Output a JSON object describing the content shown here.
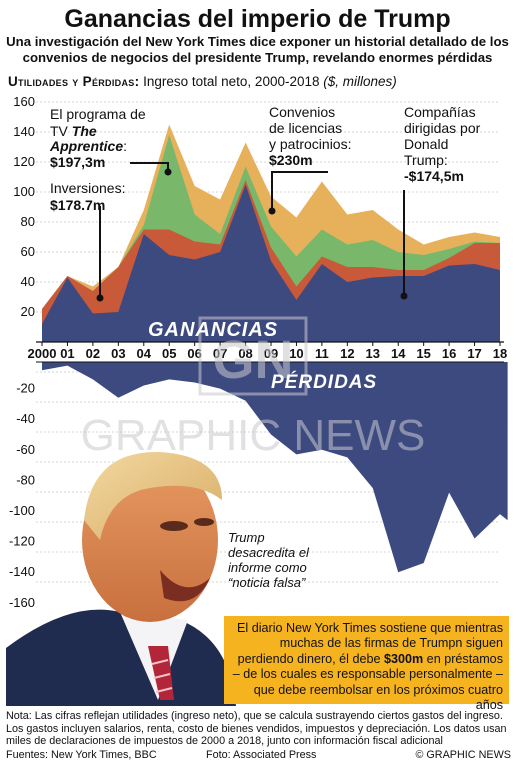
{
  "header": {
    "title": "Ganancias del imperio de Trump",
    "subtitle": "Una investigación del New York Times dice exponer un historial detallado de los convenios de negocios del presidente Trump, revelando enormes pérdidas"
  },
  "section": {
    "label": "Utilidades y Pérdidas:",
    "desc": " Ingreso total neto, 2000-2018 ",
    "unit": "($, millones)"
  },
  "colors": {
    "base": "#3d4a80",
    "layer2": "#c85a3a",
    "layer3": "#79b86a",
    "layer4": "#e7b15c",
    "callout": "#f6b320"
  },
  "labels": {
    "gains": "GANANCIAS",
    "losses": "PÉRDIDAS",
    "watermark": "GRAPHIC NEWS",
    "apprentice": [
      "El programa de",
      "TV ",
      "The",
      "Apprentice",
      ":",
      "$197,3m"
    ],
    "investments": [
      "Inversiones:",
      "$178.7m"
    ],
    "licensing": [
      "Convenios",
      "de licencias",
      "y patrocinios:",
      "$230m"
    ],
    "companies": [
      "Compañías",
      "dirigidas por",
      "Donald",
      "Trump:",
      "-$174,5m"
    ]
  },
  "quote": "Trump desacredita el informe como “noticia falsa”",
  "callout": {
    "before": "El diario New York Times sostiene que mientras muchas de las firmas de Trumpn siguen perdiendo dinero, él debe ",
    "amount": "$300m",
    "after": " en préstamos – de los cuales es responsable personalmente – que debe reembolsar en los próximos cuatro años"
  },
  "notes": "Nota: Las cifras reflejan utilidades (ingreso neto), que se calcula sustrayendo ciertos gastos del ingreso. Los gastos incluyen salarios, renta, costo de bienes vendidos, impuestos y depreciación. Los datos usan miles de declaraciones de impuestos de 2000 a 2018, junto con información fiscal adicional",
  "footer": {
    "sources": "Fuentes: New York Times, BBC",
    "photo": "Foto: Associated Press",
    "credit": "© GRAPHIC NEWS"
  },
  "chart_data": {
    "type": "area",
    "x_labels": [
      "2000",
      "01",
      "02",
      "03",
      "04",
      "05",
      "06",
      "07",
      "08",
      "09",
      "10",
      "11",
      "12",
      "13",
      "14",
      "15",
      "16",
      "17",
      "18"
    ],
    "x": [
      2000,
      2001,
      2002,
      2003,
      2004,
      2005,
      2006,
      2007,
      2008,
      2009,
      2010,
      2011,
      2012,
      2013,
      2014,
      2015,
      2016,
      2017,
      2018
    ],
    "y_ticks": [
      160,
      140,
      120,
      100,
      80,
      60,
      40,
      20,
      0,
      -20,
      -40,
      -60,
      -80,
      -100,
      -120,
      -140,
      -160
    ],
    "ylim": [
      -160,
      160
    ],
    "gains_stack_cumulative": [
      {
        "values": [
          12,
          43,
          19,
          20,
          72,
          58,
          55,
          60,
          105,
          54,
          28,
          52,
          40,
          43,
          44,
          44,
          51,
          52,
          48
        ]
      },
      {
        "values": [
          22,
          44,
          34,
          50,
          75,
          75,
          67,
          65,
          108,
          63,
          37,
          57,
          50,
          50,
          48,
          48,
          56,
          66,
          66
        ]
      },
      {
        "values": [
          22,
          44,
          34,
          50,
          78,
          138,
          85,
          72,
          117,
          77,
          57,
          75,
          65,
          68,
          60,
          58,
          62,
          67,
          66
        ]
      },
      {
        "values": [
          22,
          44,
          37,
          50,
          88,
          145,
          104,
          95,
          133,
          97,
          83,
          107,
          85,
          88,
          75,
          65,
          70,
          73,
          70
        ]
      }
    ],
    "losses": [
      -8,
      -5,
      -14,
      -26,
      -18,
      -14,
      -16,
      -20,
      -28,
      -50,
      -63,
      -60,
      -65,
      -85,
      -140,
      -134,
      -88,
      -118,
      -102,
      -106
    ],
    "losses_x": [
      2000,
      2001,
      2002,
      2003,
      2004,
      2005,
      2006,
      2007,
      2008,
      2009,
      2010,
      2011,
      2012,
      2013,
      2014,
      2015,
      2016,
      2017,
      2018,
      2018.3
    ]
  }
}
